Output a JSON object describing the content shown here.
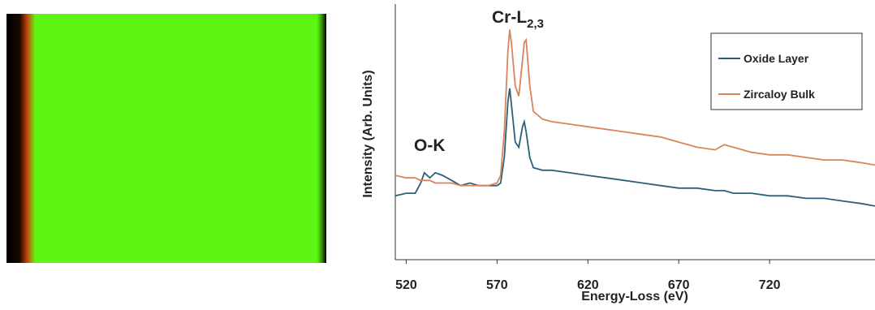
{
  "chart_data": {
    "type": "line",
    "x": [
      514,
      520,
      525,
      528,
      530,
      533,
      536,
      540,
      545,
      550,
      555,
      560,
      565,
      570,
      572,
      574,
      576,
      577,
      578,
      580,
      582,
      584,
      585,
      586,
      588,
      590,
      595,
      600,
      610,
      620,
      630,
      640,
      650,
      660,
      670,
      680,
      690,
      695,
      700,
      710,
      720,
      730,
      740,
      750,
      760,
      770,
      778
    ],
    "xlim": [
      514,
      778
    ],
    "xticks": [
      520,
      570,
      620,
      670,
      720
    ],
    "ylim": [
      0,
      100
    ],
    "xlabel": "Energy-Loss (eV)",
    "ylabel": "Intensity (Arb. Units)",
    "legend": "upper right",
    "annotations": [
      {
        "text": "O-K"
      },
      {
        "text": "Cr-L",
        "sub": "2,3"
      }
    ],
    "series": [
      {
        "name": "Oxide Layer",
        "color": "#2e5f78",
        "values": [
          25,
          26,
          26,
          30,
          34,
          32,
          34,
          33,
          31,
          29,
          30,
          29,
          29,
          29,
          30,
          40,
          62,
          67,
          60,
          46,
          44,
          52,
          54,
          50,
          40,
          36,
          35,
          35,
          34,
          33,
          32,
          31,
          30,
          29,
          28,
          28,
          27,
          27,
          26,
          26,
          25,
          25,
          24,
          24,
          23,
          22,
          21
        ]
      },
      {
        "name": "Zircaloy Bulk",
        "color": "#d9845a",
        "values": [
          33,
          32,
          32,
          31,
          31,
          31,
          30,
          30,
          30,
          29,
          29,
          29,
          29,
          30,
          33,
          50,
          82,
          90,
          84,
          68,
          64,
          78,
          85,
          86,
          68,
          58,
          55,
          54,
          53,
          52,
          51,
          50,
          49,
          48,
          46,
          44,
          43,
          45,
          44,
          42,
          41,
          41,
          40,
          39,
          39,
          38,
          37
        ]
      }
    ]
  }
}
